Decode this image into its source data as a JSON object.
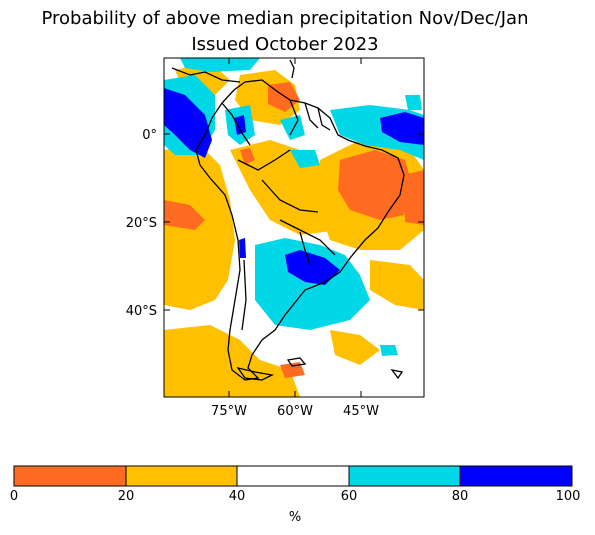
{
  "title": "Probability of above median precipitation Nov/Dec/Jan",
  "subtitle": "Issued October 2023",
  "map": {
    "lat_labels": [
      "0°",
      "20°S",
      "40°S"
    ],
    "lon_labels": [
      "75°W",
      "60°W",
      "45°W"
    ]
  },
  "colorbar": {
    "unit": "%",
    "ticks": [
      "0",
      "20",
      "40",
      "60",
      "80",
      "100"
    ],
    "colors": [
      "#ff6b20",
      "#ffc000",
      "#ffffff",
      "#00d8e8",
      "#0000ff"
    ]
  }
}
